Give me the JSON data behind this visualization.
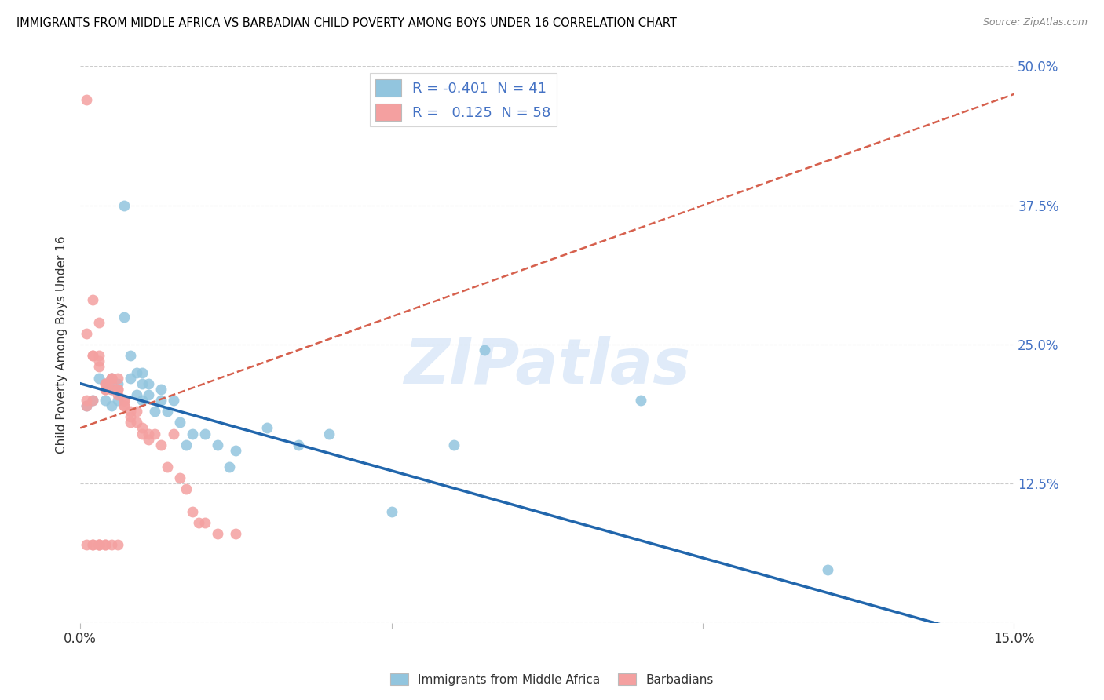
{
  "title": "IMMIGRANTS FROM MIDDLE AFRICA VS BARBADIAN CHILD POVERTY AMONG BOYS UNDER 16 CORRELATION CHART",
  "source": "Source: ZipAtlas.com",
  "ylabel": "Child Poverty Among Boys Under 16",
  "xlim": [
    0.0,
    0.15
  ],
  "ylim": [
    0.0,
    0.5
  ],
  "x_ticks": [
    0.0,
    0.05,
    0.1,
    0.15
  ],
  "x_tick_labels": [
    "0.0%",
    "",
    "",
    "15.0%"
  ],
  "y_ticks": [
    0.0,
    0.125,
    0.25,
    0.375,
    0.5
  ],
  "y_tick_labels": [
    "",
    "12.5%",
    "25.0%",
    "37.5%",
    "50.0%"
  ],
  "blue_R": -0.401,
  "blue_N": 41,
  "pink_R": 0.125,
  "pink_N": 58,
  "blue_color": "#92c5de",
  "pink_color": "#f4a0a0",
  "blue_line_color": "#2166ac",
  "pink_line_color": "#d6604d",
  "watermark": "ZIPatlas",
  "legend_label_blue": "Immigrants from Middle Africa",
  "legend_label_pink": "Barbadians",
  "blue_scatter_x": [
    0.001,
    0.002,
    0.003,
    0.004,
    0.004,
    0.005,
    0.005,
    0.005,
    0.006,
    0.006,
    0.007,
    0.007,
    0.008,
    0.008,
    0.009,
    0.009,
    0.01,
    0.01,
    0.01,
    0.011,
    0.011,
    0.012,
    0.013,
    0.013,
    0.014,
    0.015,
    0.016,
    0.017,
    0.018,
    0.02,
    0.022,
    0.024,
    0.025,
    0.03,
    0.035,
    0.04,
    0.05,
    0.06,
    0.065,
    0.09,
    0.12
  ],
  "blue_scatter_y": [
    0.195,
    0.2,
    0.22,
    0.2,
    0.215,
    0.195,
    0.21,
    0.22,
    0.2,
    0.215,
    0.375,
    0.275,
    0.22,
    0.24,
    0.225,
    0.205,
    0.2,
    0.215,
    0.225,
    0.205,
    0.215,
    0.19,
    0.2,
    0.21,
    0.19,
    0.2,
    0.18,
    0.16,
    0.17,
    0.17,
    0.16,
    0.14,
    0.155,
    0.175,
    0.16,
    0.17,
    0.1,
    0.16,
    0.245,
    0.2,
    0.048
  ],
  "pink_scatter_x": [
    0.001,
    0.001,
    0.001,
    0.001,
    0.002,
    0.002,
    0.002,
    0.002,
    0.003,
    0.003,
    0.003,
    0.003,
    0.004,
    0.004,
    0.004,
    0.004,
    0.005,
    0.005,
    0.005,
    0.005,
    0.006,
    0.006,
    0.006,
    0.006,
    0.007,
    0.007,
    0.007,
    0.007,
    0.008,
    0.008,
    0.008,
    0.009,
    0.009,
    0.01,
    0.01,
    0.011,
    0.011,
    0.012,
    0.013,
    0.014,
    0.015,
    0.016,
    0.017,
    0.018,
    0.019,
    0.02,
    0.022,
    0.025,
    0.003,
    0.004,
    0.005,
    0.001,
    0.002,
    0.006,
    0.003,
    0.004,
    0.002,
    0.003
  ],
  "pink_scatter_y": [
    0.47,
    0.26,
    0.2,
    0.195,
    0.29,
    0.24,
    0.24,
    0.2,
    0.24,
    0.235,
    0.23,
    0.27,
    0.21,
    0.215,
    0.21,
    0.215,
    0.22,
    0.22,
    0.21,
    0.215,
    0.22,
    0.21,
    0.21,
    0.205,
    0.2,
    0.195,
    0.2,
    0.195,
    0.19,
    0.185,
    0.18,
    0.19,
    0.18,
    0.17,
    0.175,
    0.17,
    0.165,
    0.17,
    0.16,
    0.14,
    0.17,
    0.13,
    0.12,
    0.1,
    0.09,
    0.09,
    0.08,
    0.08,
    0.07,
    0.07,
    0.07,
    0.07,
    0.07,
    0.07,
    0.07,
    0.07,
    0.07,
    0.07
  ]
}
